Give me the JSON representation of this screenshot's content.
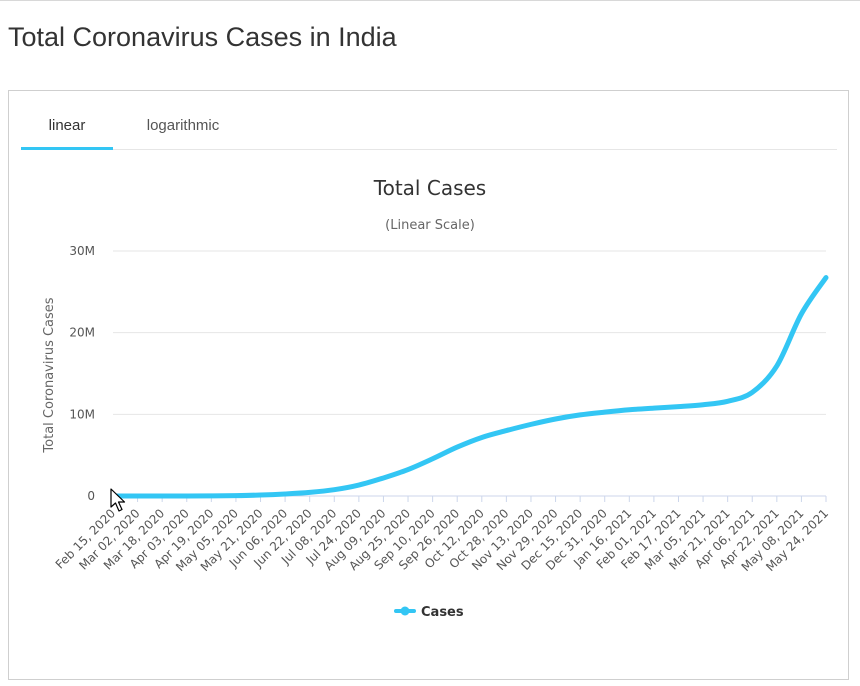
{
  "page": {
    "title": "Total Coronavirus Cases in India"
  },
  "tabs": [
    {
      "label": "linear",
      "active": true
    },
    {
      "label": "logarithmic",
      "active": false
    }
  ],
  "colors": {
    "series": "#33c6f4",
    "accent": "#33c6f4",
    "grid": "#e6e6e6"
  },
  "chart_data": {
    "type": "line",
    "title": "Total Cases",
    "subtitle": "(Linear Scale)",
    "ylabel": "Total Coronavirus Cases",
    "xlabel": "",
    "ylim": [
      0,
      30000000
    ],
    "yticks": [
      {
        "value": 0,
        "label": "0"
      },
      {
        "value": 10000000,
        "label": "10M"
      },
      {
        "value": 20000000,
        "label": "20M"
      },
      {
        "value": 30000000,
        "label": "30M"
      }
    ],
    "categories": [
      "Feb 15, 2020",
      "Mar 02, 2020",
      "Mar 18, 2020",
      "Apr 03, 2020",
      "Apr 19, 2020",
      "May 05, 2020",
      "May 21, 2020",
      "Jun 06, 2020",
      "Jun 22, 2020",
      "Jul 08, 2020",
      "Jul 24, 2020",
      "Aug 09, 2020",
      "Aug 25, 2020",
      "Sep 10, 2020",
      "Sep 26, 2020",
      "Oct 12, 2020",
      "Oct 28, 2020",
      "Nov 13, 2020",
      "Nov 29, 2020",
      "Dec 15, 2020",
      "Dec 31, 2020",
      "Jan 16, 2021",
      "Feb 01, 2021",
      "Feb 17, 2021",
      "Mar 05, 2021",
      "Mar 21, 2021",
      "Apr 06, 2021",
      "Apr 22, 2021",
      "May 08, 2021",
      "May 24, 2021"
    ],
    "series": [
      {
        "name": "Cases",
        "values": [
          3,
          3,
          150,
          2500,
          17000,
          49000,
          120000,
          250000,
          440000,
          770000,
          1340000,
          2210000,
          3240000,
          4560000,
          5990000,
          7170000,
          8010000,
          8770000,
          9430000,
          9930000,
          10270000,
          10560000,
          10760000,
          10940000,
          11170000,
          11600000,
          12690000,
          15930000,
          22300000,
          26750000
        ]
      }
    ],
    "legend": {
      "position": "bottom",
      "entries": [
        "Cases"
      ]
    }
  }
}
